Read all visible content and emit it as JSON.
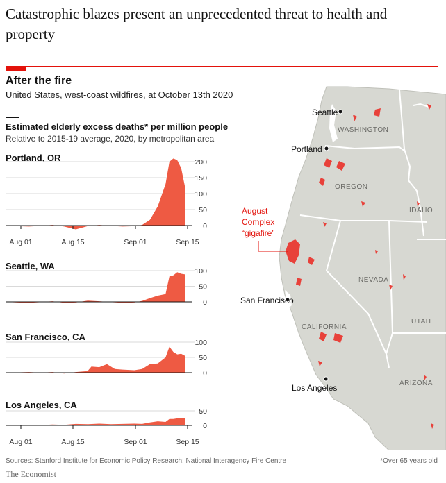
{
  "headline": "Catastrophic blazes present an unprecedented threat to health and property",
  "title": "After the fire",
  "subtitle": "United States, west-coast wildfires, at October 13th 2020",
  "chart_title": "Estimated elderly excess deaths* per million people",
  "chart_subtitle": "Relative to 2015-19 average, 2020, by metropolitan area",
  "source": "Sources: Stanford Institute for Economic Policy Research; National Interagency Fire Centre",
  "footnote": "*Over 65 years old",
  "brand": "The Economist",
  "colors": {
    "accent": "#e3120b",
    "area": "#ee5a43",
    "map_land": "#d7d8d2",
    "fire": "#e8413a"
  },
  "x_ticks": [
    "Aug 01",
    "Aug 15",
    "Sep 01",
    "Sep 15"
  ],
  "chart_data": [
    {
      "type": "area",
      "name": "Portland, OR",
      "x_start": "2020-08-01",
      "x_end": "2020-09-17",
      "yticks": [
        0,
        50,
        100,
        150,
        200
      ],
      "ylim": [
        -10,
        210
      ],
      "show_xticks": true,
      "x_days": [
        0,
        3,
        6,
        9,
        12,
        15,
        18,
        21,
        24,
        27,
        30,
        33,
        35,
        37,
        39,
        41,
        42,
        43,
        44,
        45,
        46
      ],
      "values": [
        0,
        -2,
        -3,
        -1,
        2,
        -3,
        -12,
        -2,
        2,
        -1,
        -3,
        -2,
        2,
        18,
        60,
        130,
        200,
        210,
        205,
        180,
        120
      ]
    },
    {
      "type": "area",
      "name": "Seattle, WA",
      "x_start": "2020-08-01",
      "x_end": "2020-09-17",
      "yticks": [
        0,
        50,
        100
      ],
      "ylim": [
        -10,
        100
      ],
      "show_xticks": false,
      "x_days": [
        0,
        3,
        6,
        9,
        12,
        15,
        18,
        21,
        24,
        27,
        30,
        33,
        35,
        37,
        39,
        41,
        42,
        43,
        44,
        45,
        46
      ],
      "values": [
        0,
        -2,
        -3,
        -1,
        2,
        -3,
        -2,
        4,
        2,
        -1,
        -3,
        -2,
        3,
        12,
        20,
        25,
        82,
        85,
        95,
        90,
        88
      ]
    },
    {
      "type": "area",
      "name": "San Francisco, CA",
      "x_start": "2020-08-01",
      "x_end": "2020-09-17",
      "yticks": [
        0,
        50,
        100
      ],
      "ylim": [
        -10,
        100
      ],
      "show_xticks": false,
      "x_days": [
        0,
        3,
        6,
        9,
        12,
        15,
        18,
        21,
        22,
        24,
        26,
        28,
        30,
        33,
        35,
        37,
        39,
        41,
        42,
        43,
        44,
        45,
        46
      ],
      "values": [
        0,
        1,
        2,
        0,
        2,
        -3,
        2,
        5,
        20,
        18,
        28,
        12,
        10,
        8,
        12,
        28,
        30,
        50,
        85,
        68,
        60,
        62,
        55
      ]
    },
    {
      "type": "area",
      "name": "Los Angeles, CA",
      "x_start": "2020-08-01",
      "x_end": "2020-09-17",
      "yticks": [
        0,
        50
      ],
      "ylim": [
        -10,
        50
      ],
      "show_xticks": true,
      "x_days": [
        0,
        3,
        6,
        9,
        12,
        15,
        18,
        21,
        24,
        27,
        30,
        33,
        35,
        37,
        39,
        41,
        42,
        43,
        44,
        45,
        46
      ],
      "values": [
        0,
        1,
        2,
        1,
        3,
        2,
        5,
        4,
        6,
        4,
        5,
        6,
        5,
        10,
        14,
        12,
        22,
        22,
        24,
        25,
        24
      ]
    }
  ],
  "map": {
    "states": [
      "WASHINGTON",
      "OREGON",
      "IDAHO",
      "NEVADA",
      "CALIFORNIA",
      "UTAH",
      "ARIZONA"
    ],
    "cities": [
      "Seattle",
      "Portland",
      "San Francisco",
      "Los Angeles"
    ],
    "callout_lines": [
      "August",
      "Complex",
      "“gigafire”"
    ]
  }
}
